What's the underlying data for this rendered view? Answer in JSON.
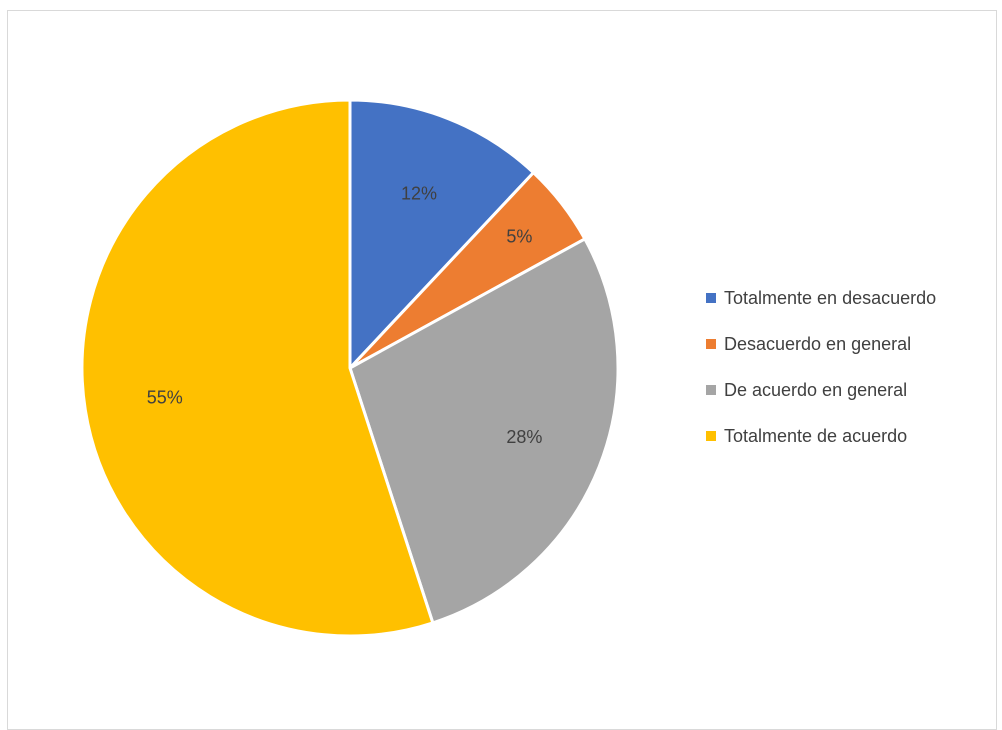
{
  "chart_data": {
    "type": "pie",
    "title": "",
    "legend_position": "right",
    "slices": [
      {
        "label": "Totalmente en desacuerdo",
        "value": 12,
        "display": "12%",
        "color": "#4472C4"
      },
      {
        "label": "Desacuerdo en general",
        "value": 5,
        "display": "5%",
        "color": "#ED7D31"
      },
      {
        "label": "De acuerdo en general",
        "value": 28,
        "display": "28%",
        "color": "#A5A5A5"
      },
      {
        "label": "Totalmente de acuerdo",
        "value": 55,
        "display": "55%",
        "color": "#FFC000"
      }
    ]
  }
}
